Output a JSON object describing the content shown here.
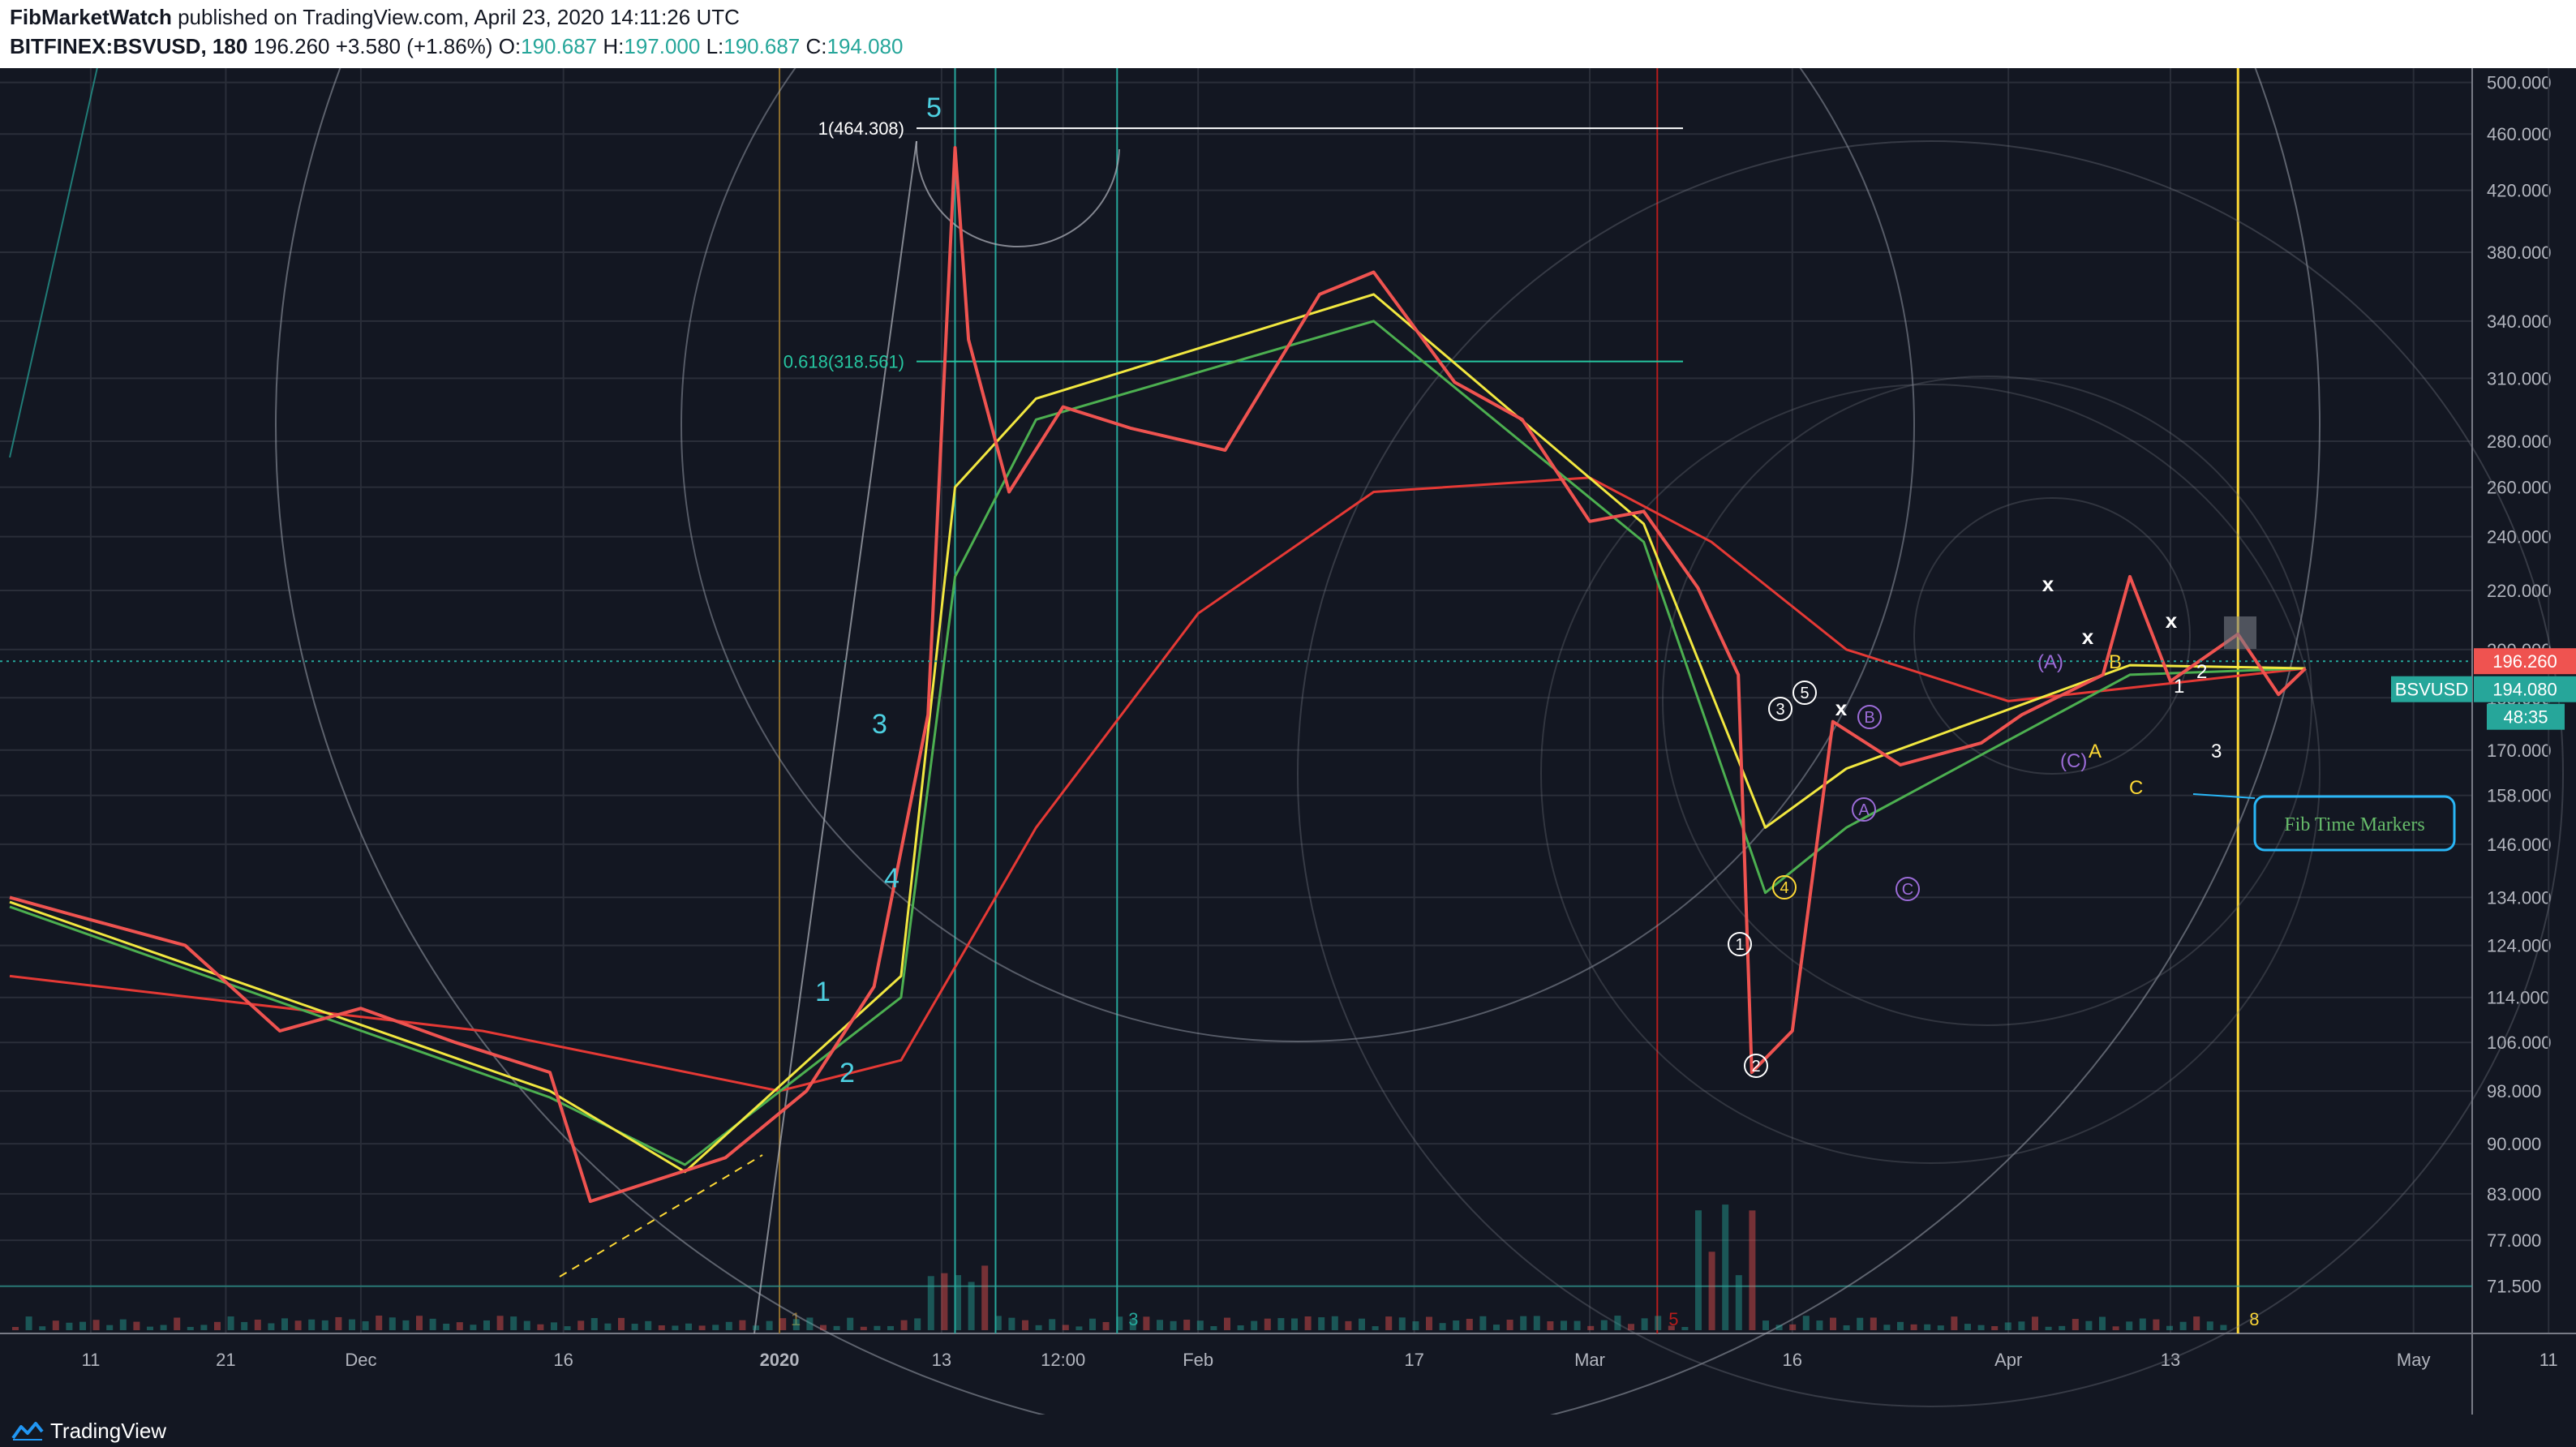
{
  "header": {
    "publisher": "FibMarketWatch",
    "published_text": "published on TradingView.com, April 23, 2020 14:11:26 UTC",
    "symbol": "BITFINEX:BSVUSD, 180",
    "last": "196.260",
    "change": "+3.580 (+1.86%)",
    "o_label": "O:",
    "o_value": "190.687",
    "h_label": "H:",
    "h_value": "197.000",
    "l_label": "L:",
    "l_value": "190.687",
    "c_label": "C:",
    "c_value": "194.080"
  },
  "footer": {
    "brand": "TradingView",
    "logo_icon": "tradingview-logo-icon"
  },
  "chart_data": {
    "type": "line",
    "price_scale": "log",
    "ylim": [
      68,
      505
    ],
    "y_ticks": [
      "500.000",
      "460.000",
      "420.000",
      "380.000",
      "340.000",
      "310.000",
      "280.000",
      "260.000",
      "240.000",
      "220.000",
      "200.000",
      "185.000",
      "170.000",
      "158.000",
      "146.000",
      "134.000",
      "124.000",
      "114.000",
      "106.000",
      "98.000",
      "90.000",
      "83.000",
      "77.000",
      "71.500"
    ],
    "x_ticks": [
      "11",
      "21",
      "Dec",
      "16",
      "2020",
      "13",
      "12:00",
      "Feb",
      "17",
      "Mar",
      "16",
      "Apr",
      "13",
      "May",
      "11"
    ],
    "series": [
      {
        "name": "BSVUSD",
        "color": "#ef5350",
        "x": [
          "2019-11-05",
          "2019-11-10",
          "2019-11-18",
          "2019-11-25",
          "2019-12-01",
          "2019-12-08",
          "2019-12-15",
          "2019-12-18",
          "2019-12-28",
          "2020-01-03",
          "2020-01-08",
          "2020-01-12",
          "2020-01-14",
          "2020-01-15",
          "2020-01-18",
          "2020-01-22",
          "2020-01-27",
          "2020-02-03",
          "2020-02-10",
          "2020-02-14",
          "2020-02-20",
          "2020-02-25",
          "2020-03-01",
          "2020-03-05",
          "2020-03-09",
          "2020-03-12",
          "2020-03-13",
          "2020-03-16",
          "2020-03-19",
          "2020-03-24",
          "2020-03-30",
          "2020-04-02",
          "2020-04-08",
          "2020-04-10",
          "2020-04-13",
          "2020-04-18",
          "2020-04-21",
          "2020-04-23"
        ],
        "values": [
          134,
          130,
          124,
          108,
          112,
          106,
          101,
          82,
          88,
          98,
          116,
          180,
          450,
          330,
          258,
          296,
          286,
          276,
          355,
          368,
          308,
          290,
          246,
          250,
          221,
          192,
          101,
          108,
          178,
          166,
          172,
          180,
          192,
          225,
          190,
          205,
          186,
          194
        ]
      },
      {
        "name": "SMA 200",
        "color": "#e53935",
        "x": [
          "2019-11-05",
          "2019-12-10",
          "2020-01-01",
          "2020-01-10",
          "2020-01-20",
          "2020-02-01",
          "2020-02-14",
          "2020-03-01",
          "2020-03-10",
          "2020-03-20",
          "2020-04-01",
          "2020-04-10",
          "2020-04-23"
        ],
        "values": [
          118,
          108,
          98,
          103,
          150,
          212,
          258,
          264,
          238,
          200,
          184,
          188,
          194
        ]
      },
      {
        "name": "EMA fast",
        "color": "#f1e740",
        "x": [
          "2019-11-05",
          "2019-12-15",
          "2019-12-25",
          "2020-01-10",
          "2020-01-14",
          "2020-01-20",
          "2020-02-14",
          "2020-03-05",
          "2020-03-14",
          "2020-03-20",
          "2020-04-10",
          "2020-04-23"
        ],
        "values": [
          133,
          98,
          86,
          118,
          260,
          300,
          355,
          245,
          150,
          165,
          195,
          194
        ]
      },
      {
        "name": "EMA slow",
        "color": "#4caf50",
        "x": [
          "2019-11-05",
          "2019-12-15",
          "2019-12-25",
          "2020-01-10",
          "2020-01-14",
          "2020-01-20",
          "2020-02-14",
          "2020-03-05",
          "2020-03-14",
          "2020-03-20",
          "2020-04-10",
          "2020-04-23"
        ],
        "values": [
          132,
          97,
          87,
          114,
          225,
          290,
          340,
          238,
          135,
          150,
          192,
          194
        ]
      }
    ],
    "annotations": {
      "fib_1": "1(464.308)",
      "fib_0618": "0.618(318.561)",
      "wave_labels": [
        "1",
        "2",
        "3",
        "4",
        "5"
      ],
      "circled_labels": [
        "1",
        "2",
        "3",
        "4",
        "5",
        "A",
        "B",
        "C"
      ],
      "abc_labels": [
        "A",
        "B",
        "C",
        "(A)",
        "(C)",
        "1",
        "2",
        "3"
      ],
      "x_marks": [
        "x",
        "x",
        "x",
        "x"
      ],
      "callout": "Fib Time Markers",
      "time_markers": [
        "1",
        "3",
        "5",
        "8"
      ]
    },
    "price_labels": {
      "last": "196.260",
      "symbol_tag": "BSVUSD",
      "close": "194.080",
      "countdown": "48:35"
    }
  },
  "colors": {
    "background": "#131722",
    "grid": "#2a2e39",
    "up": "#26a69a",
    "down": "#ef5350",
    "wave_cyan": "#4dd0e1",
    "fib_green": "#26c6a0",
    "marker_yellow": "#fdd835",
    "purple": "#9c6cd8",
    "callout_blue": "#29b6f6"
  }
}
